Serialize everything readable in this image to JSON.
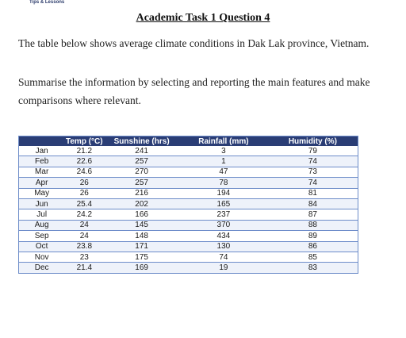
{
  "header": {
    "tag": "Tips & Lessons"
  },
  "title": "Academic Task 1 Question 4",
  "paragraphs": [
    "The table below shows average climate conditions in Dak Lak province, Vietnam.",
    "Summarise the information by selecting and reporting the main features and make comparisons where relevant."
  ],
  "table": {
    "columns": [
      "",
      "Temp (°C)",
      "Sunshine (hrs)",
      "Rainfall (mm)",
      "Humidity (%)"
    ],
    "rows": [
      [
        "Jan",
        "21.2",
        "241",
        "3",
        "79"
      ],
      [
        "Feb",
        "22.6",
        "257",
        "1",
        "74"
      ],
      [
        "Mar",
        "24.6",
        "270",
        "47",
        "73"
      ],
      [
        "Apr",
        "26",
        "257",
        "78",
        "74"
      ],
      [
        "May",
        "26",
        "216",
        "194",
        "81"
      ],
      [
        "Jun",
        "25.4",
        "202",
        "165",
        "84"
      ],
      [
        "Jul",
        "24.2",
        "166",
        "237",
        "87"
      ],
      [
        "Aug",
        "24",
        "145",
        "370",
        "88"
      ],
      [
        "Sep",
        "24",
        "148",
        "434",
        "89"
      ],
      [
        "Oct",
        "23.8",
        "171",
        "130",
        "86"
      ],
      [
        "Nov",
        "23",
        "175",
        "74",
        "85"
      ],
      [
        "Dec",
        "21.4",
        "169",
        "19",
        "83"
      ]
    ]
  }
}
